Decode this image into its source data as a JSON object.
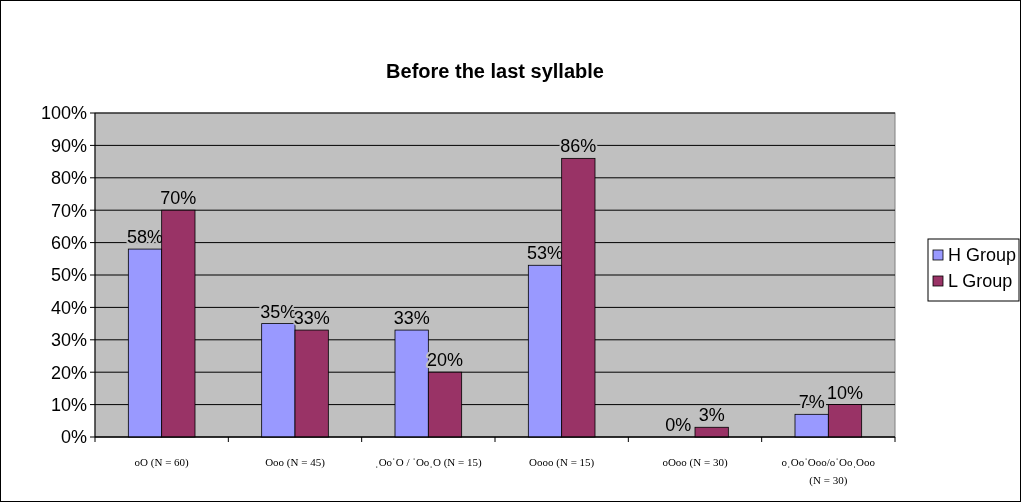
{
  "chart_data": {
    "type": "bar",
    "title": "Before the last syllable",
    "categories": [
      "oO (N = 60)",
      "Ooo (N = 45)",
      "ˌOoˈO / ˈOoˌO (N = 15)",
      "Oooo (N = 15)",
      "oOoo (N = 30)",
      "oˌOoˈOoo/oˈOoˌOoo (N = 30)"
    ],
    "series": [
      {
        "name": "H Group",
        "color": "#9999ff",
        "values": [
          58,
          35,
          33,
          53,
          0,
          7
        ]
      },
      {
        "name": "L Group",
        "color": "#993366",
        "values": [
          70,
          33,
          20,
          86,
          3,
          10
        ]
      }
    ],
    "ylim": [
      0,
      100
    ],
    "yticks": [
      {
        "value": 0,
        "label": "0%"
      },
      {
        "value": 10,
        "label": "10%"
      },
      {
        "value": 20,
        "label": "20%"
      },
      {
        "value": 30,
        "label": "30%"
      },
      {
        "value": 40,
        "label": "40%"
      },
      {
        "value": 50,
        "label": "50%"
      },
      {
        "value": 60,
        "label": "60%"
      },
      {
        "value": 70,
        "label": "70%"
      },
      {
        "value": 80,
        "label": "80%"
      },
      {
        "value": 90,
        "label": "90%"
      },
      {
        "value": 100,
        "label": "100%"
      }
    ],
    "value_labels": [
      [
        "58%",
        "35%",
        "33%",
        "53%",
        "0%",
        "7%"
      ],
      [
        "70%",
        "33%",
        "20%",
        "86%",
        "3%",
        "10%"
      ]
    ],
    "grid": "y",
    "legend": "right"
  }
}
